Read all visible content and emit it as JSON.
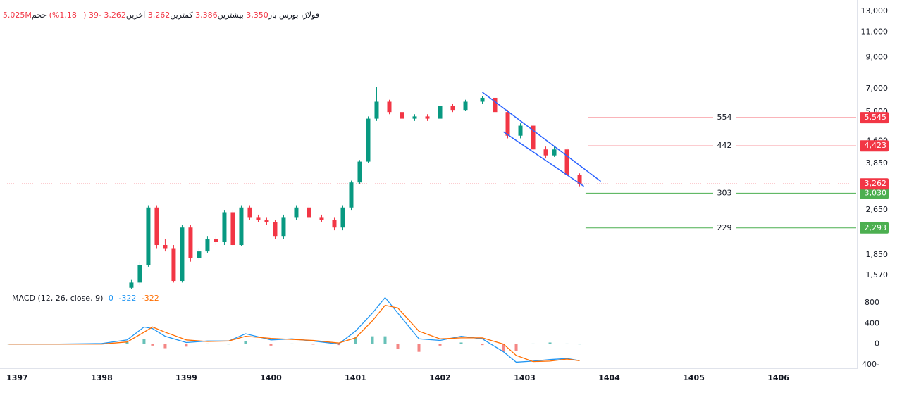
{
  "chart_data": {
    "type": "candlestick",
    "header": {
      "symbol": "فولاژ، بورس",
      "open_label": "باز",
      "open": "3,350",
      "high_label": "بیشترین",
      "high": "3,386",
      "low_label": "کمترین",
      "low": "3,262",
      "last_label": "آخرین",
      "last": "3,262",
      "change": "-39",
      "change_pct": "(−1.18%)",
      "volume_label": "حجم",
      "volume": "5.025M"
    },
    "up_color": "#089981",
    "down_color": "#f23645",
    "log_scale": true,
    "x": [
      1398.35,
      1398.45,
      1398.55,
      1398.65,
      1398.75,
      1398.85,
      1398.95,
      1399.05,
      1399.15,
      1399.25,
      1399.35,
      1399.45,
      1399.55,
      1399.65,
      1399.75,
      1399.85,
      1399.95,
      1400.05,
      1400.15,
      1400.3,
      1400.45,
      1400.6,
      1400.75,
      1400.85,
      1400.95,
      1401.05,
      1401.15,
      1401.25,
      1401.4,
      1401.55,
      1401.7,
      1401.85,
      1402.0,
      1402.15,
      1402.3,
      1402.5,
      1402.65,
      1402.8,
      1402.95,
      1403.1,
      1403.25,
      1403.35,
      1403.5,
      1403.65
    ],
    "open": [
      1420,
      1480,
      1700,
      2700,
      2000,
      1950,
      1500,
      2300,
      1800,
      1900,
      2100,
      2050,
      2600,
      2000,
      2700,
      2500,
      2450,
      2400,
      2150,
      2500,
      2700,
      2500,
      2450,
      2300,
      2700,
      3300,
      3900,
      5500,
      6300,
      5800,
      5500,
      5600,
      5500,
      6100,
      5900,
      6300,
      6500,
      5800,
      4800,
      5200,
      4300,
      4100,
      4300,
      3500
    ],
    "high": [
      1520,
      1750,
      2750,
      2750,
      2100,
      2000,
      2350,
      2350,
      1950,
      2150,
      2150,
      2650,
      2650,
      2750,
      2750,
      2550,
      2500,
      2450,
      2550,
      2750,
      2750,
      2550,
      2500,
      2750,
      3350,
      3950,
      5600,
      7100,
      6400,
      5900,
      5700,
      5700,
      6200,
      6200,
      6400,
      6600,
      6600,
      5900,
      5300,
      5300,
      4400,
      4400,
      4400,
      3550
    ],
    "low": [
      1410,
      1450,
      1680,
      1950,
      1900,
      1480,
      1480,
      1750,
      1780,
      1880,
      2000,
      2000,
      1980,
      1980,
      2450,
      2400,
      2350,
      2100,
      2100,
      2450,
      2450,
      2400,
      2250,
      2250,
      2650,
      3250,
      3850,
      5400,
      5700,
      5400,
      5400,
      5400,
      5450,
      5800,
      5850,
      6200,
      5700,
      4700,
      4700,
      4200,
      4000,
      4050,
      3450,
      3200
    ],
    "close": [
      1480,
      1700,
      2700,
      2000,
      1950,
      1500,
      2300,
      1800,
      1900,
      2100,
      2050,
      2600,
      2000,
      2700,
      2500,
      2450,
      2400,
      2150,
      2500,
      2700,
      2500,
      2450,
      2300,
      2700,
      3300,
      3900,
      5500,
      6300,
      5800,
      5500,
      5600,
      5500,
      6100,
      5900,
      6300,
      6500,
      5800,
      4800,
      5200,
      4300,
      4100,
      4300,
      3500,
      3262
    ],
    "xlim": [
      1396.88,
      1406.92
    ],
    "xticks": [
      1397,
      1398,
      1399,
      1400,
      1401,
      1402,
      1403,
      1404,
      1405,
      1406
    ],
    "ylim": [
      1410,
      13450
    ],
    "yticks": [
      {
        "value": 1570,
        "label": "1,570"
      },
      {
        "value": 1850,
        "label": "1,850"
      },
      {
        "value": 2650,
        "label": "2,650"
      },
      {
        "value": 3850,
        "label": "3,850"
      },
      {
        "value": 4600,
        "label": "4,600"
      },
      {
        "value": 5800,
        "label": "5,800"
      },
      {
        "value": 7000,
        "label": "7,000"
      },
      {
        "value": 9000,
        "label": "9,000"
      },
      {
        "value": 11000,
        "label": "11,000"
      },
      {
        "value": 13000,
        "label": "13,000"
      }
    ],
    "last_price": {
      "value": 3262,
      "label": "3,262",
      "color": "#f23645"
    },
    "levels": [
      {
        "value": 5545,
        "label": "5,545",
        "distance": "554",
        "color": "#f23645",
        "x_start": 1403.75
      },
      {
        "value": 4423,
        "label": "4,423",
        "distance": "442",
        "color": "#f23645",
        "x_start": 1403.75
      },
      {
        "value": 3030,
        "label": "3,030",
        "distance": "303",
        "color": "#4caf50",
        "x_start": 1403.72
      },
      {
        "value": 2293,
        "label": "2,293",
        "distance": "229",
        "color": "#4caf50",
        "x_start": 1403.72
      }
    ],
    "trendlines": [
      {
        "x": [
          1402.5,
          1403.9
        ],
        "y": [
          6800,
          3330
        ],
        "color": "#2962ff"
      },
      {
        "x": [
          1402.75,
          1403.7
        ],
        "y": [
          4950,
          3200
        ],
        "color": "#2962ff"
      }
    ],
    "macd": {
      "title": "MACD (12, 26, close, 9)",
      "hist_last": "0",
      "macd_last": "-322",
      "signal_last": "-322",
      "ylim": [
        -454,
        1044
      ],
      "yticks": [
        {
          "value": -400,
          "label": "400-"
        },
        0,
        400,
        800
      ],
      "x": [
        1396.9,
        1397.5,
        1398,
        1398.3,
        1398.5,
        1398.6,
        1398.75,
        1399,
        1399.25,
        1399.5,
        1399.7,
        1400,
        1400.25,
        1400.5,
        1400.8,
        1401,
        1401.2,
        1401.35,
        1401.5,
        1401.75,
        1402,
        1402.25,
        1402.5,
        1402.75,
        1402.9,
        1403.1,
        1403.3,
        1403.5,
        1403.65
      ],
      "macd_color": "#2196f3",
      "signal_color": "#ff6d00",
      "macd_values": [
        0,
        0,
        10,
        80,
        330,
        300,
        150,
        30,
        60,
        60,
        200,
        80,
        100,
        60,
        0,
        250,
        600,
        900,
        600,
        100,
        70,
        150,
        100,
        -150,
        -350,
        -330,
        -300,
        -280,
        -322
      ],
      "signal_values": [
        0,
        0,
        0,
        40,
        230,
        330,
        230,
        80,
        50,
        60,
        150,
        110,
        90,
        70,
        20,
        120,
        450,
        750,
        700,
        250,
        100,
        120,
        120,
        0,
        -220,
        -340,
        -330,
        -290,
        -322
      ],
      "hist_values": [
        0,
        0,
        10,
        40,
        100,
        -30,
        -80,
        -50,
        10,
        0,
        50,
        -30,
        10,
        -10,
        -20,
        130,
        150,
        150,
        -100,
        -150,
        -30,
        30,
        -20,
        -150,
        -130,
        10,
        30,
        10,
        0
      ]
    }
  }
}
